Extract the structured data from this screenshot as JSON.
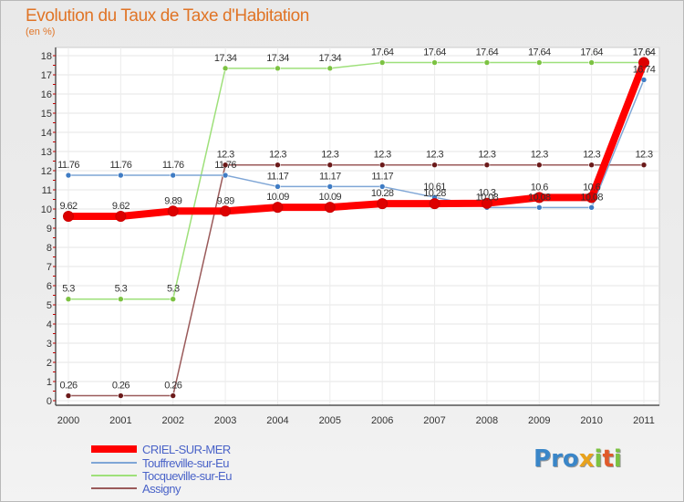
{
  "title": "Evolution du Taux de Taxe d'Habitation",
  "unit_label": "(en %)",
  "logo": {
    "letters": [
      "P",
      "r",
      "o",
      "x",
      "i",
      "t",
      "i"
    ],
    "colors": [
      "#3a86c8",
      "#3a86c8",
      "#3a86c8",
      "#e8a21c",
      "#7cc242",
      "#e05a2b",
      "#7cc242"
    ]
  },
  "chart_data": {
    "type": "line",
    "x": [
      "2000",
      "2001",
      "2002",
      "2003",
      "2004",
      "2005",
      "2006",
      "2007",
      "2008",
      "2009",
      "2010",
      "2011"
    ],
    "ylim": [
      0,
      18
    ],
    "yticks": [
      0,
      1,
      2,
      3,
      4,
      5,
      6,
      7,
      8,
      9,
      10,
      11,
      12,
      13,
      14,
      15,
      16,
      17,
      18
    ],
    "grid": true,
    "legend_position": "bottom-left",
    "series": [
      {
        "name": "CRIEL-SUR-MER",
        "color": "#ff0000",
        "marker": "#dd0000",
        "values": [
          9.62,
          9.62,
          9.89,
          9.89,
          10.09,
          10.09,
          10.28,
          10.28,
          10.3,
          10.6,
          10.6,
          17.64
        ],
        "labels": [
          "9.62",
          "9.62",
          "9.89",
          "9.89",
          "10.09",
          "10.09",
          "10.28",
          "10.28",
          "10.3",
          "10.6",
          "10.6",
          "17.64"
        ]
      },
      {
        "name": "Touffreville-sur-Eu",
        "color": "#7fa6d6",
        "marker": "#3f7cc4",
        "values": [
          11.76,
          11.76,
          11.76,
          11.76,
          11.17,
          11.17,
          11.17,
          10.61,
          10.08,
          10.08,
          10.08,
          16.74
        ],
        "labels": [
          "11.76",
          "11.76",
          "11.76",
          "11.76",
          "11.17",
          "11.17",
          "11.17",
          "10.61",
          "10.08",
          "10.08",
          "10.08",
          "16.74"
        ]
      },
      {
        "name": "Tocqueville-sur-Eu",
        "color": "#9ee07a",
        "marker": "#7cc242",
        "values": [
          5.3,
          5.3,
          5.3,
          17.34,
          17.34,
          17.34,
          17.64,
          17.64,
          17.64,
          17.64,
          17.64,
          17.64
        ],
        "labels": [
          "5.3",
          "5.3",
          "5.3",
          "17.34",
          "17.34",
          "17.34",
          "17.64",
          "17.64",
          "17.64",
          "17.64",
          "17.64",
          "17.64"
        ]
      },
      {
        "name": "Assigny",
        "color": "#9a5a5a",
        "marker": "#6b1a1a",
        "values": [
          0.26,
          0.26,
          0.26,
          12.3,
          12.3,
          12.3,
          12.3,
          12.3,
          12.3,
          12.3,
          12.3,
          12.3
        ],
        "labels": [
          "0.26",
          "0.26",
          "0.26",
          "12.3",
          "12.3",
          "12.3",
          "12.3",
          "12.3",
          "12.3",
          "12.3",
          "12.3",
          "12.3"
        ]
      }
    ]
  }
}
